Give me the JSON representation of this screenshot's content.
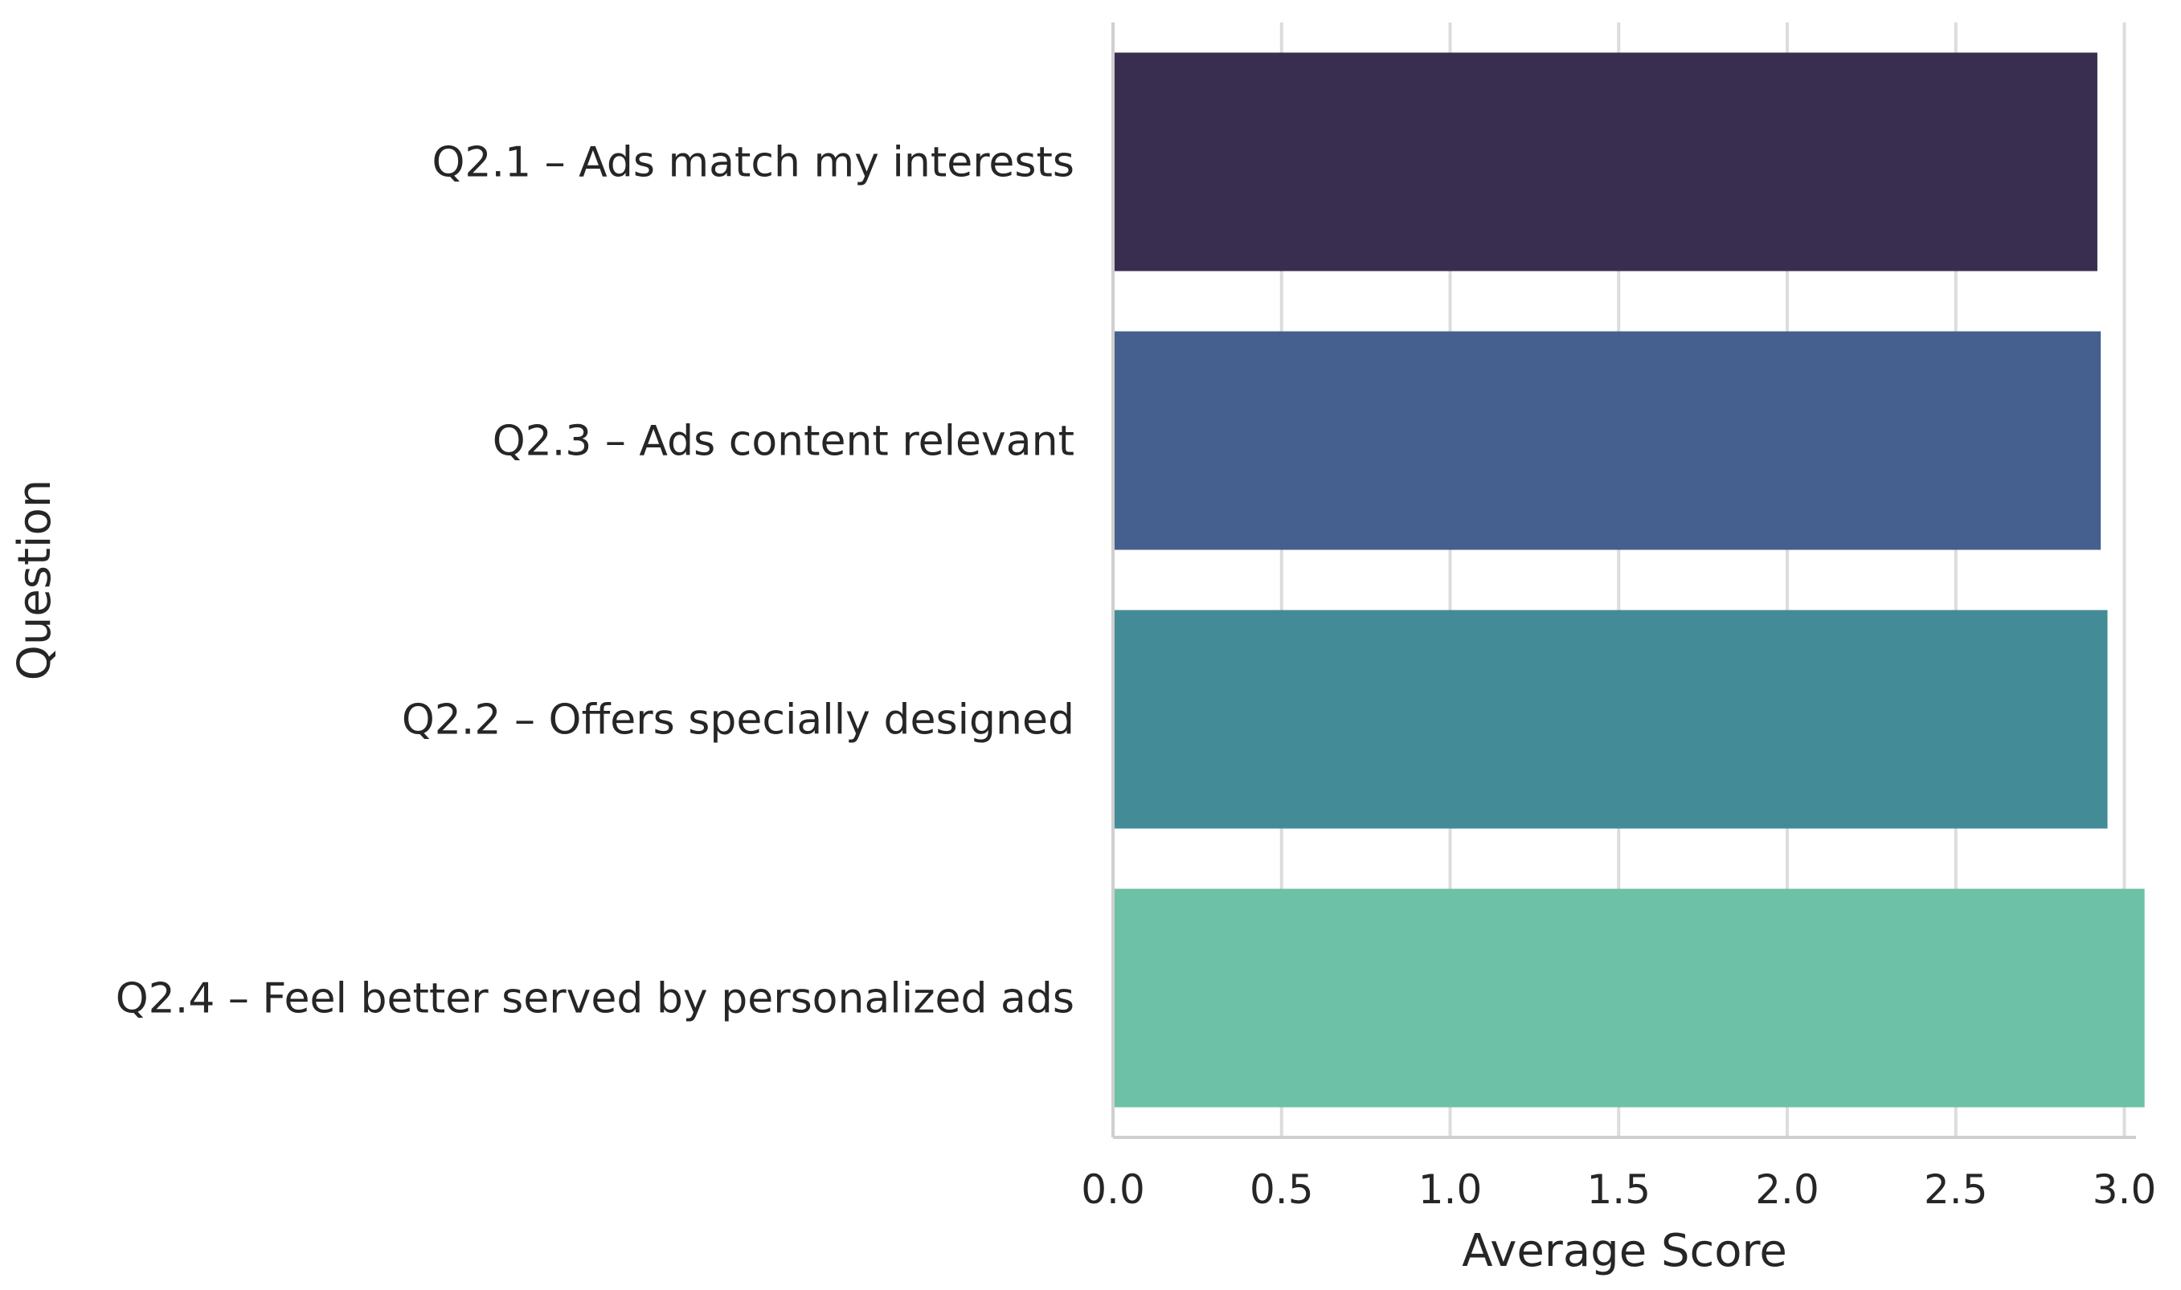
{
  "chart_data": {
    "type": "bar",
    "orientation": "horizontal",
    "title": "",
    "xlabel": "Average Score",
    "ylabel": "Question",
    "xlim": [
      0,
      3.05
    ],
    "xticks": [
      0.0,
      0.5,
      1.0,
      1.5,
      2.0,
      2.5,
      3.0
    ],
    "xtick_labels": [
      "0.0",
      "0.5",
      "1.0",
      "1.5",
      "2.0",
      "2.5",
      "3.0"
    ],
    "grid": true,
    "categories": [
      "Q2.1 – Ads match my interests",
      "Q2.3 – Ads content relevant",
      "Q2.2 – Offers specially designed",
      "Q2.4 – Feel better served by personalized ads"
    ],
    "values": [
      2.92,
      2.93,
      2.95,
      3.06
    ],
    "colors": [
      "#3a2e50",
      "#455f8e",
      "#438b97",
      "#6dc1a6"
    ]
  }
}
